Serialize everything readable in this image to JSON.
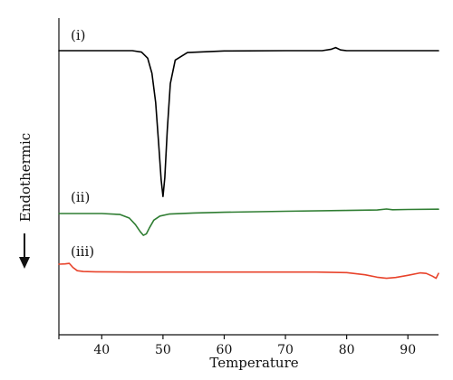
{
  "chart_data": {
    "type": "line",
    "title": "",
    "xlabel": "Temperature",
    "ylabel": "Endothermic",
    "xlim": [
      33,
      95
    ],
    "xticks": [
      "40",
      "50",
      "60",
      "70",
      "80",
      "90"
    ],
    "y_axis_ticks": "none",
    "grid": false,
    "legend": "none",
    "direction_arrow": "down",
    "series": [
      {
        "name": "(i)",
        "color": "#000000",
        "x": [
          33,
          40,
          45,
          46.5,
          47.5,
          48.2,
          48.8,
          49.3,
          49.7,
          50.0,
          50.3,
          50.7,
          51.2,
          52.0,
          54.0,
          60,
          70,
          76,
          77.5,
          78.2,
          79,
          80,
          85,
          90,
          95
        ],
        "y": [
          0.0,
          0.0,
          0.0,
          -0.3,
          -1.6,
          -4.8,
          -11.0,
          -20.0,
          -27.5,
          -31.0,
          -27.0,
          -17.0,
          -7.0,
          -2.0,
          -0.4,
          -0.05,
          0.0,
          0.0,
          0.3,
          0.65,
          0.15,
          0.0,
          0.0,
          0.0,
          0.0
        ]
      },
      {
        "name": "(ii)",
        "color": "#2f7d32",
        "x": [
          33,
          40,
          43,
          44.5,
          45.5,
          46.3,
          46.8,
          47.3,
          47.8,
          48.5,
          49.5,
          51,
          55,
          60,
          70,
          80,
          85,
          86.5,
          87.5,
          90,
          95
        ],
        "y": [
          0.0,
          0.0,
          -0.2,
          -0.9,
          -2.2,
          -3.6,
          -4.3,
          -4.0,
          -2.8,
          -1.3,
          -0.5,
          -0.1,
          0.1,
          0.25,
          0.45,
          0.6,
          0.7,
          0.9,
          0.75,
          0.8,
          0.85
        ]
      },
      {
        "name": "(iii)",
        "color": "#e8432b",
        "x": [
          33,
          34,
          34.7,
          35.3,
          36,
          37,
          39,
          45,
          55,
          65,
          75,
          80,
          83,
          85,
          86.5,
          88,
          90,
          92,
          93,
          94,
          94.6,
          95
        ],
        "y": [
          0.0,
          0.05,
          0.15,
          -0.6,
          -1.2,
          -1.35,
          -1.4,
          -1.45,
          -1.45,
          -1.45,
          -1.45,
          -1.55,
          -1.95,
          -2.4,
          -2.6,
          -2.45,
          -2.05,
          -1.6,
          -1.7,
          -2.2,
          -2.6,
          -1.7
        ]
      }
    ]
  }
}
